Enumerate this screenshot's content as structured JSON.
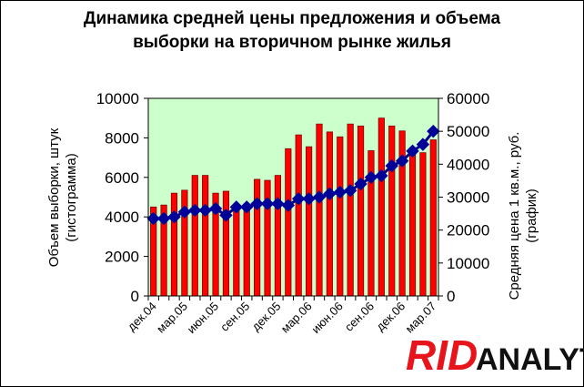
{
  "title_line1": "Динамика средней цены предложения и объема",
  "title_line2": "выборки на вторичном рынке жилья",
  "logo": {
    "part1": "RID",
    "part2": "ANALYTICS"
  },
  "colors": {
    "plot_bg": "#ccffcc",
    "bar_fill": "#ff0000",
    "bar_stroke": "#800000",
    "line": "#00008b",
    "marker": "#000099"
  },
  "chart_data": {
    "type": "bar+line",
    "title": "Динамика средней цены предложения и объема выборки на вторичном рынке жилья",
    "ylabel_left": [
      "Объем выборки, штук",
      "(гистограмма)"
    ],
    "ylabel_right": [
      "Средняя цена 1 кв.м., руб.",
      "(график)"
    ],
    "y_left": {
      "min": 0,
      "max": 10000,
      "ticks": [
        "0",
        "2000",
        "4000",
        "6000",
        "8000",
        "10000"
      ]
    },
    "y_right": {
      "min": 0,
      "max": 60000,
      "ticks": [
        "0",
        "10000",
        "20000",
        "30000",
        "40000",
        "50000",
        "60000"
      ]
    },
    "x_tick_labels": [
      "дек.04",
      "мар.05",
      "июн.05",
      "сен.05",
      "дек.05",
      "мар.06",
      "июн.06",
      "сен.06",
      "дек.06",
      "мар.07"
    ],
    "x_tick_every": 3,
    "grid": false,
    "legend": "none",
    "series": [
      {
        "axis": "left",
        "kind": "bar",
        "values": [
          4500,
          4600,
          5200,
          5350,
          6100,
          6100,
          5200,
          5300,
          4400,
          4650,
          5900,
          5850,
          6100,
          7450,
          8150,
          7550,
          8700,
          8300,
          8050,
          8700,
          8600,
          7350,
          9000,
          8600,
          8350,
          7500,
          7250,
          7900
        ]
      },
      {
        "axis": "right",
        "kind": "line",
        "values": [
          23500,
          23500,
          24000,
          25500,
          26000,
          26000,
          26500,
          24500,
          27000,
          27000,
          28000,
          28000,
          28000,
          27500,
          29500,
          29500,
          30000,
          31000,
          31500,
          32000,
          34000,
          36000,
          36500,
          39500,
          41000,
          44000,
          46000,
          50000
        ]
      }
    ]
  }
}
